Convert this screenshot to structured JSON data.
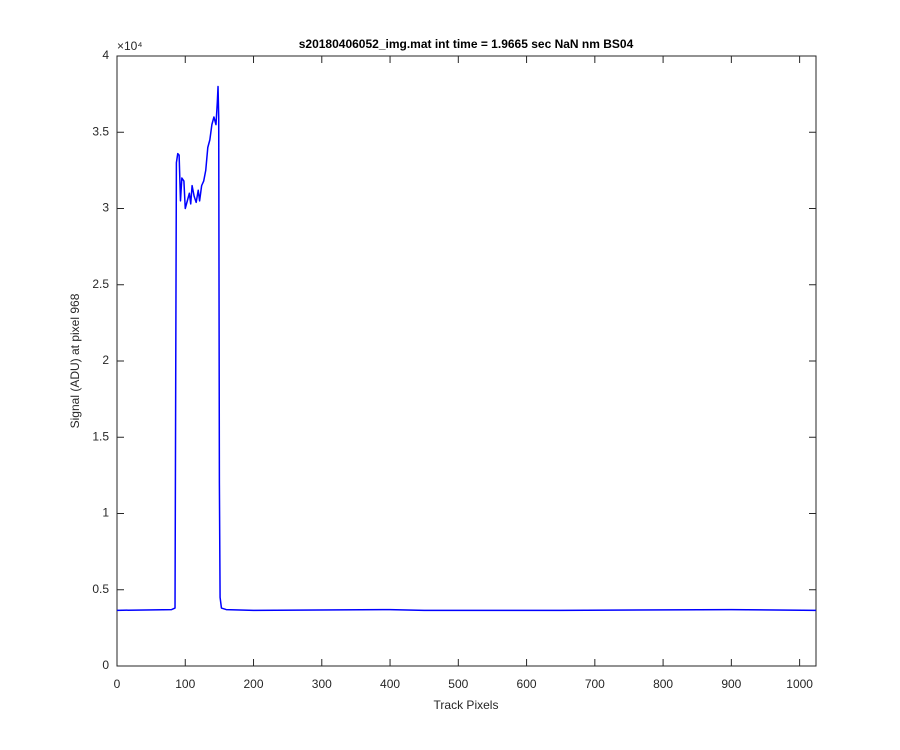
{
  "chart_data": {
    "type": "line",
    "title": "s20180406052_img.mat int time = 1.9665 sec  NaN nm BS04",
    "x_label": "Track Pixels",
    "y_label": "Signal (ADU) at pixel 968",
    "y_exponent_label": "×10⁴",
    "xlim": [
      0,
      1024
    ],
    "ylim": [
      0,
      40000
    ],
    "xticks": [
      0,
      100,
      200,
      300,
      400,
      500,
      600,
      700,
      800,
      900,
      1000
    ],
    "yticks": [
      0,
      {
        "value": 5000,
        "label": "0.5"
      },
      {
        "value": 10000,
        "label": "1"
      },
      {
        "value": 15000,
        "label": "1.5"
      },
      {
        "value": 20000,
        "label": "2"
      },
      {
        "value": 25000,
        "label": "2.5"
      },
      {
        "value": 30000,
        "label": "3"
      },
      {
        "value": 35000,
        "label": "3.5"
      },
      {
        "value": 40000,
        "label": "4"
      }
    ],
    "grid": false,
    "x": [
      0,
      80,
      85,
      86,
      87,
      89,
      91,
      93,
      95,
      98,
      100,
      103,
      106,
      108,
      110,
      113,
      116,
      119,
      121,
      124,
      127,
      130,
      133,
      136,
      139,
      142,
      145,
      147,
      148,
      149,
      150,
      151,
      153,
      160,
      200,
      400,
      450,
      650,
      900,
      1024
    ],
    "series": [
      {
        "color": "#0000ff",
        "values": [
          3650,
          3700,
          3800,
          18800,
          33000,
          33600,
          33500,
          30500,
          32000,
          31800,
          30000,
          30500,
          31000,
          30300,
          31500,
          30800,
          30400,
          31200,
          30500,
          31500,
          31800,
          32500,
          34000,
          34500,
          35500,
          36000,
          35500,
          37000,
          38000,
          36000,
          12000,
          4500,
          3800,
          3700,
          3650,
          3700,
          3650,
          3650,
          3700,
          3650
        ]
      }
    ]
  }
}
